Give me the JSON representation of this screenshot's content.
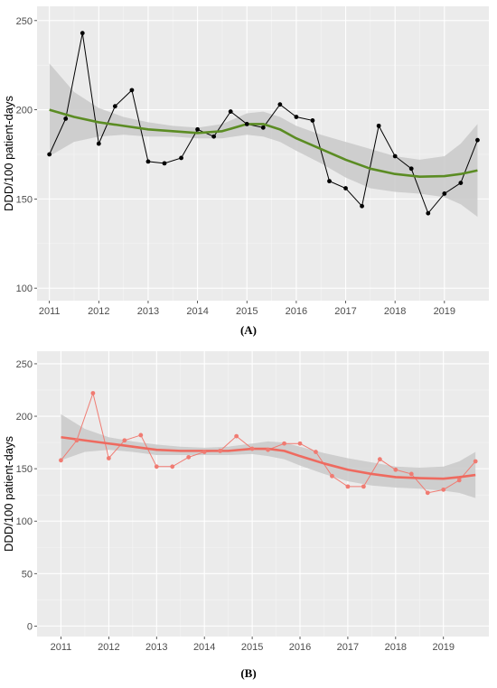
{
  "chart_data": [
    {
      "type": "line",
      "panel_label": "(A)",
      "xlabel": "",
      "ylabel": "DDD/100 patient-days",
      "xlim": [
        2010.75,
        2019.9
      ],
      "ylim": [
        93,
        258
      ],
      "xticks": [
        2011,
        2012,
        2013,
        2014,
        2015,
        2016,
        2017,
        2018,
        2019
      ],
      "yticks": [
        100,
        150,
        200,
        250
      ],
      "grid": true,
      "colors": {
        "points": "#000000",
        "line": "#000000",
        "smooth": "#5b8c23",
        "band": "#c9c9c9",
        "panel": "#ebebeb"
      },
      "series": [
        {
          "x": [
            2011.0,
            2011.33,
            2011.67,
            2012.0,
            2012.33,
            2012.67,
            2013.0,
            2013.33,
            2013.67,
            2014.0,
            2014.33,
            2014.67,
            2015.0,
            2015.33,
            2015.67,
            2016.0,
            2016.33,
            2016.67,
            2017.0,
            2017.33,
            2017.67,
            2018.0,
            2018.33,
            2018.67,
            2019.0,
            2019.33,
            2019.67
          ],
          "y": [
            175,
            195,
            243,
            181,
            202,
            211,
            171,
            170,
            173,
            189,
            185,
            199,
            192,
            190,
            203,
            196,
            194,
            160,
            156,
            146,
            191,
            174,
            167,
            142,
            153,
            159,
            183
          ]
        }
      ],
      "smooth": {
        "x": [
          2011.0,
          2011.5,
          2012.0,
          2012.5,
          2013.0,
          2013.5,
          2014.0,
          2014.5,
          2015.0,
          2015.33,
          2015.67,
          2016.0,
          2016.5,
          2017.0,
          2017.5,
          2018.0,
          2018.5,
          2019.0,
          2019.33,
          2019.67
        ],
        "y": [
          200,
          196,
          193,
          191,
          189,
          188,
          187,
          188,
          192,
          192,
          189,
          184,
          178,
          172,
          167,
          164,
          162.5,
          162.8,
          164,
          166
        ],
        "upper": [
          226,
          210,
          201,
          196,
          193,
          191,
          190,
          192,
          198,
          199,
          196,
          191,
          186,
          182,
          178,
          174,
          172,
          174,
          181,
          192
        ],
        "lower": [
          174,
          182,
          185,
          186,
          185,
          185,
          184,
          184,
          186,
          185,
          182,
          177,
          170,
          162,
          156,
          154,
          153,
          151,
          147,
          140
        ]
      }
    },
    {
      "type": "line",
      "panel_label": "(B)",
      "xlabel": "",
      "ylabel": "DDD/100 patient-days",
      "xlim": [
        2010.5,
        2019.95
      ],
      "ylim": [
        -10,
        262
      ],
      "xticks": [
        2011,
        2012,
        2013,
        2014,
        2015,
        2016,
        2017,
        2018,
        2019
      ],
      "yticks": [
        0,
        50,
        100,
        150,
        200,
        250
      ],
      "grid": true,
      "colors": {
        "points": "#f07b72",
        "line": "#f07b72",
        "smooth": "#ee6a5f",
        "band": "#c9c9c9",
        "panel": "#ebebeb"
      },
      "series": [
        {
          "x": [
            2011.0,
            2011.33,
            2011.67,
            2012.0,
            2012.33,
            2012.67,
            2013.0,
            2013.33,
            2013.67,
            2014.0,
            2014.33,
            2014.67,
            2015.0,
            2015.33,
            2015.67,
            2016.0,
            2016.33,
            2016.67,
            2017.0,
            2017.33,
            2017.67,
            2018.0,
            2018.33,
            2018.67,
            2019.0,
            2019.33,
            2019.67
          ],
          "y": [
            158,
            177,
            222,
            160,
            177,
            182,
            152,
            152,
            161,
            166,
            167,
            181,
            169,
            168,
            174,
            174,
            166,
            143,
            133,
            133,
            159,
            149,
            145,
            127,
            130,
            139,
            157
          ]
        }
      ],
      "smooth": {
        "x": [
          2011.0,
          2011.5,
          2012.0,
          2012.5,
          2013.0,
          2013.5,
          2014.0,
          2014.5,
          2015.0,
          2015.33,
          2015.67,
          2016.0,
          2016.5,
          2017.0,
          2017.5,
          2018.0,
          2018.5,
          2019.0,
          2019.33,
          2019.67
        ],
        "y": [
          180,
          177,
          174,
          171,
          168,
          167,
          167,
          167,
          169,
          169,
          167,
          162,
          155,
          149,
          145,
          142,
          141,
          140.5,
          142,
          144
        ],
        "upper": [
          202,
          188,
          180,
          176,
          173,
          171,
          170,
          171,
          174,
          176,
          175,
          171,
          165,
          160,
          156,
          152,
          151,
          152,
          157,
          166
        ],
        "lower": [
          158,
          166,
          168,
          166,
          163,
          163,
          163,
          163,
          164,
          162,
          159,
          153,
          145,
          138,
          134,
          132,
          131,
          129,
          127,
          122
        ]
      }
    }
  ]
}
